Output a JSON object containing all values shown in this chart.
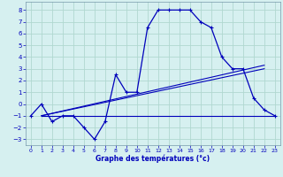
{
  "xlabel": "Graphe des températures (°c)",
  "bg_color": "#d6f0f0",
  "grid_color": "#b0d8d0",
  "line_color": "#0000bb",
  "xlim": [
    -0.5,
    23.5
  ],
  "ylim": [
    -3.5,
    8.7
  ],
  "xticks": [
    0,
    1,
    2,
    3,
    4,
    5,
    6,
    7,
    8,
    9,
    10,
    11,
    12,
    13,
    14,
    15,
    16,
    17,
    18,
    19,
    20,
    21,
    22,
    23
  ],
  "yticks": [
    -3,
    -2,
    -1,
    0,
    1,
    2,
    3,
    4,
    5,
    6,
    7,
    8
  ],
  "main_x": [
    0,
    1,
    2,
    3,
    4,
    5,
    6,
    7,
    8,
    9,
    10,
    11,
    12,
    13,
    14,
    15,
    16,
    17,
    18,
    19,
    20,
    21,
    22,
    23
  ],
  "main_y": [
    -1,
    0,
    -1.5,
    -1,
    -1,
    -2,
    -3,
    -1.5,
    2.5,
    1,
    1,
    6.5,
    8,
    8,
    8,
    8,
    7,
    6.5,
    4,
    3,
    3,
    0.5,
    -0.5,
    -1
  ],
  "line1_x": [
    1,
    22
  ],
  "line1_y": [
    -1,
    3.3
  ],
  "line2_x": [
    1,
    23
  ],
  "line2_y": [
    -1,
    -1
  ],
  "line3_x": [
    1,
    22
  ],
  "line3_y": [
    -1,
    3.0
  ]
}
